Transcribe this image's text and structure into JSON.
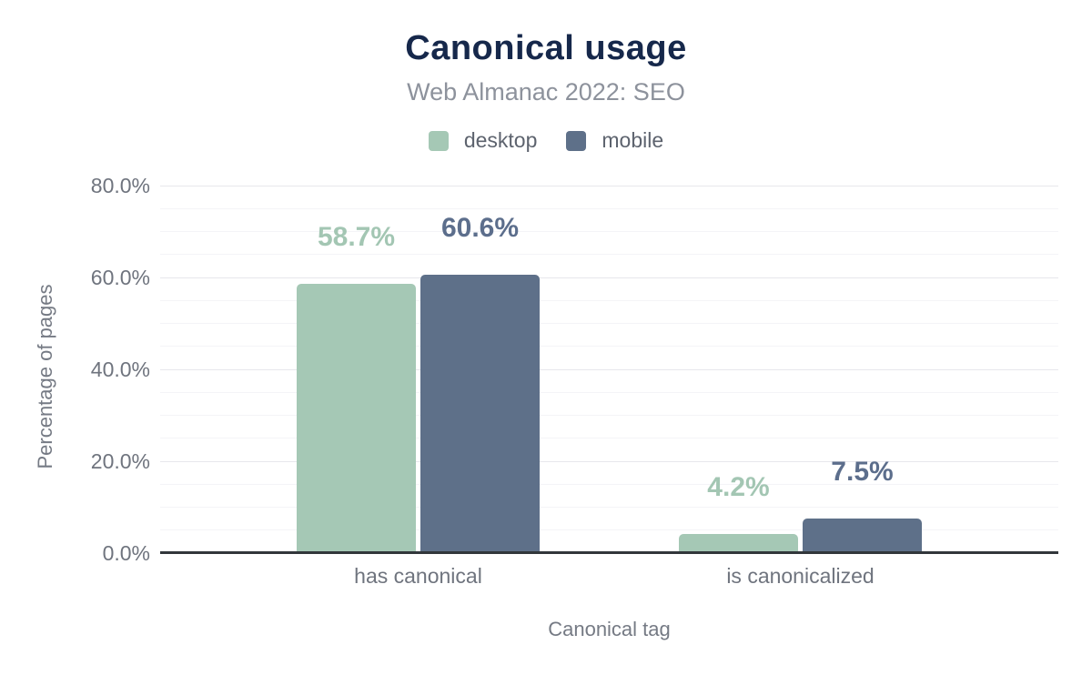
{
  "header": {
    "title": "Canonical usage",
    "subtitle": "Web Almanac 2022: SEO"
  },
  "colors": {
    "title": "#16284b",
    "subtitle": "#8d929c",
    "legend_text": "#5d636e",
    "tick_text": "#6f747e",
    "axis_text": "#757a84",
    "axis_line": "#32373b",
    "grid_major": "#e7e7ec",
    "grid_minor": "#f4f4f7",
    "desktop": "#a5c8b5",
    "mobile": "#5e7089",
    "desktop_label": "#a3c6b3",
    "mobile_label": "#5c6e8c"
  },
  "chart_data": {
    "type": "bar",
    "title": "Canonical usage",
    "subtitle": "Web Almanac 2022: SEO",
    "categories": [
      "has canonical",
      "is canonicalized"
    ],
    "series": [
      {
        "name": "desktop",
        "values": [
          58.7,
          4.2
        ],
        "labels": [
          "58.7%",
          "4.2%"
        ],
        "color": "#a5c8b5",
        "label_color": "#a3c6b3"
      },
      {
        "name": "mobile",
        "values": [
          60.6,
          7.5
        ],
        "labels": [
          "60.6%",
          "7.5%"
        ],
        "color": "#5e7089",
        "label_color": "#5c6e8c"
      }
    ],
    "xlabel": "Canonical tag",
    "ylabel": "Percentage of pages",
    "ylim": [
      0,
      80
    ],
    "yticks": [
      "0.0%",
      "20.0%",
      "40.0%",
      "60.0%",
      "80.0%"
    ],
    "ytick_values": [
      0,
      20,
      40,
      60,
      80
    ],
    "grid": "horizontal, minor every 5%, major every 20%",
    "legend_position": "top-center"
  }
}
